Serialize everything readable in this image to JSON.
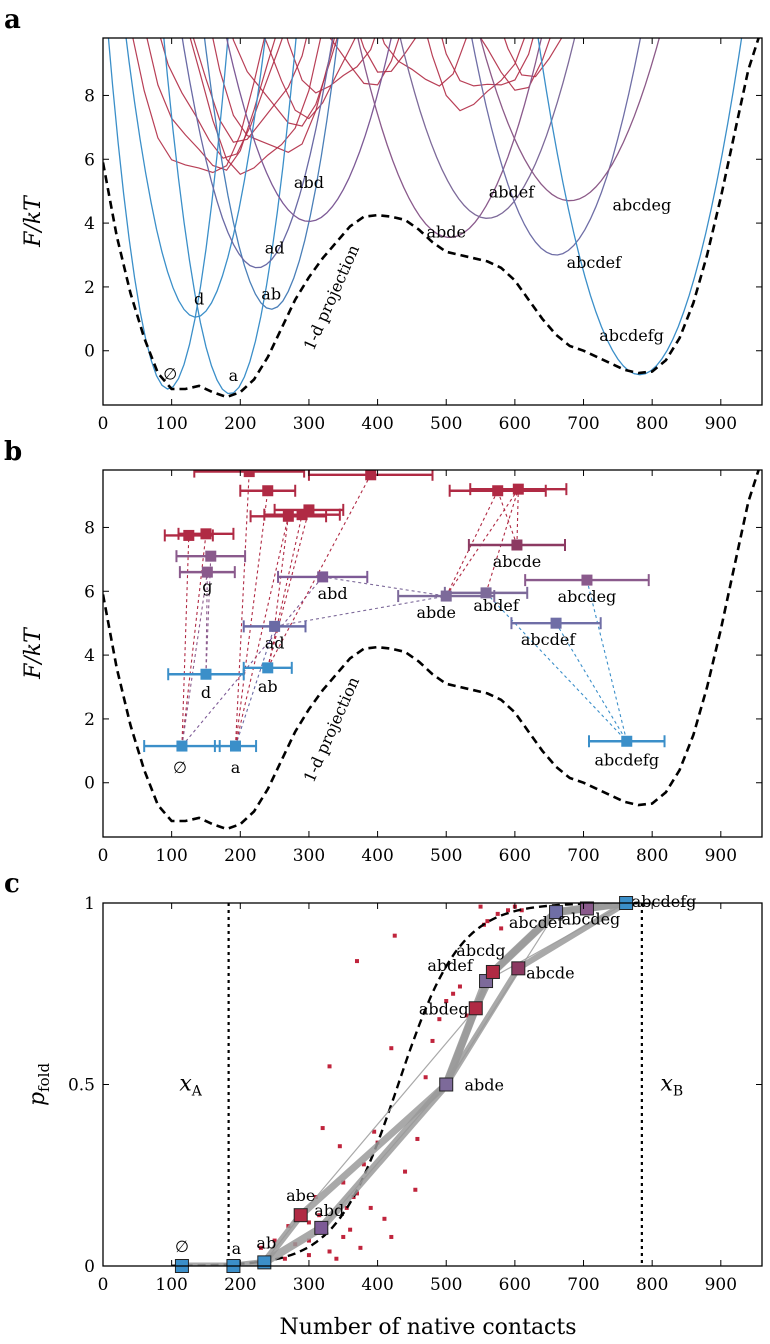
{
  "figure": {
    "xlabel": "Number of native contacts",
    "panels": [
      {
        "letter": "a",
        "ylabel": "F/kT"
      },
      {
        "letter": "b",
        "ylabel": "F/kT"
      },
      {
        "letter": "c",
        "ylabel": "p_fold"
      }
    ]
  },
  "chart_data": [
    {
      "panel": "a",
      "type": "line",
      "xlabel": "",
      "ylabel": "F/kT",
      "xlim": [
        0,
        960
      ],
      "ylim": [
        -1.7,
        9.8
      ],
      "xticks": [
        0,
        100,
        200,
        300,
        400,
        500,
        600,
        700,
        800,
        900
      ],
      "yticks": [
        0,
        2,
        4,
        6,
        8
      ],
      "projection": {
        "label": "1-d projection",
        "style": "dashed",
        "color": "#000000",
        "x": [
          0,
          20,
          40,
          60,
          80,
          100,
          120,
          140,
          160,
          180,
          200,
          220,
          240,
          260,
          280,
          300,
          320,
          340,
          360,
          380,
          400,
          420,
          440,
          460,
          480,
          500,
          520,
          540,
          560,
          580,
          600,
          620,
          640,
          660,
          680,
          700,
          720,
          740,
          760,
          780,
          800,
          820,
          840,
          860,
          880,
          900,
          920,
          940,
          955
        ],
        "y": [
          5.9,
          3.6,
          1.8,
          0.4,
          -0.7,
          -1.2,
          -1.2,
          -1.1,
          -1.3,
          -1.45,
          -1.3,
          -0.9,
          -0.2,
          0.7,
          1.6,
          2.3,
          2.9,
          3.4,
          3.9,
          4.2,
          4.25,
          4.2,
          4.1,
          3.8,
          3.4,
          3.1,
          3.0,
          2.9,
          2.8,
          2.6,
          2.2,
          1.6,
          1.0,
          0.5,
          0.15,
          0.0,
          -0.2,
          -0.4,
          -0.6,
          -0.7,
          -0.65,
          -0.3,
          0.4,
          1.5,
          3.0,
          4.8,
          6.8,
          8.8,
          9.8
        ]
      },
      "curves": [
        {
          "label": "∅",
          "color": "#3b8fc9",
          "min_x": 95,
          "min_y": -1.2,
          "k": 0.00145
        },
        {
          "label": "a",
          "color": "#3b8fc9",
          "min_x": 185,
          "min_y": -1.35,
          "k": 0.0012
        },
        {
          "label": "d",
          "color": "#3b8fc9",
          "min_x": 135,
          "min_y": 1.05,
          "k": 0.00085
        },
        {
          "label": "ab",
          "color": "#4a7fb8",
          "min_x": 245,
          "min_y": 1.3,
          "k": 0.0009
        },
        {
          "label": "ad",
          "color": "#6a6aa5",
          "min_x": 225,
          "min_y": 2.6,
          "k": 0.0006
        },
        {
          "label": "abd",
          "color": "#7d5a96",
          "min_x": 300,
          "min_y": 4.05,
          "k": 0.0004
        },
        {
          "label": "abde",
          "color": "#8a5a8c",
          "min_x": 505,
          "min_y": 3.55,
          "k": 0.00035
        },
        {
          "label": "abdef",
          "color": "#7d6a9a",
          "min_x": 560,
          "min_y": 4.15,
          "k": 0.00035
        },
        {
          "label": "abcdef",
          "color": "#6f6ea6",
          "min_x": 660,
          "min_y": 3.0,
          "k": 0.00045
        },
        {
          "label": "abcdeg",
          "color": "#8c5a88",
          "min_x": 680,
          "min_y": 4.7,
          "k": 0.0003
        },
        {
          "label": "abcdefg",
          "color": "#3b8fc9",
          "min_x": 782,
          "min_y": -0.75,
          "k": 0.00048
        }
      ],
      "background_curves": {
        "color": "#b02a44",
        "minima": [
          [
            140,
            5.4
          ],
          [
            160,
            5.8
          ],
          [
            175,
            6.3
          ],
          [
            210,
            6.7
          ],
          [
            220,
            5.6
          ],
          [
            250,
            6.1
          ],
          [
            270,
            7.2
          ],
          [
            300,
            7.6
          ],
          [
            330,
            8.1
          ],
          [
            380,
            8.5
          ],
          [
            420,
            8.9
          ],
          [
            540,
            7.6
          ],
          [
            560,
            8.0
          ],
          [
            600,
            8.4
          ],
          [
            630,
            8.8
          ],
          [
            470,
            8.3
          ]
        ]
      },
      "annotations": [
        "abd",
        "ad",
        "d",
        "ab",
        "∅",
        "a",
        "abde",
        "abdef",
        "abcdeg",
        "abcdef",
        "abcdefg",
        "1-d projection"
      ]
    },
    {
      "panel": "b",
      "type": "scatter",
      "xlabel": "",
      "ylabel": "F/kT",
      "xlim": [
        0,
        960
      ],
      "ylim": [
        -1.7,
        9.8
      ],
      "xticks": [
        0,
        100,
        200,
        300,
        400,
        500,
        600,
        700,
        800,
        900
      ],
      "yticks": [
        0,
        2,
        4,
        6,
        8
      ],
      "points": [
        {
          "label": "∅",
          "x": 115,
          "y": 1.15,
          "xerr": 55,
          "color": "#3b8fc9"
        },
        {
          "label": "a",
          "x": 193,
          "y": 1.15,
          "xerr": 30,
          "color": "#3b8fc9"
        },
        {
          "label": "d",
          "x": 150,
          "y": 3.4,
          "xerr": 55,
          "color": "#3b8fc9"
        },
        {
          "label": "ab",
          "x": 240,
          "y": 3.6,
          "xerr": 35,
          "color": "#3b8fc9"
        },
        {
          "label": "ad",
          "x": 250,
          "y": 4.9,
          "xerr": 45,
          "color": "#6a6aa5"
        },
        {
          "label": "g",
          "x": 152,
          "y": 6.6,
          "xerr": 40,
          "color": "#8a5a8c"
        },
        {
          "label": "",
          "x": 157,
          "y": 7.1,
          "xerr": 50,
          "color": "#8a5a8c"
        },
        {
          "label": "",
          "x": 125,
          "y": 7.75,
          "xerr": 35,
          "color": "#b02a44"
        },
        {
          "label": "",
          "x": 150,
          "y": 7.8,
          "xerr": 40,
          "color": "#b02a44"
        },
        {
          "label": "abd",
          "x": 320,
          "y": 6.45,
          "xerr": 65,
          "color": "#7d5a96"
        },
        {
          "label": "",
          "x": 213,
          "y": 9.75,
          "xerr": 80,
          "color": "#b02a44"
        },
        {
          "label": "",
          "x": 240,
          "y": 9.15,
          "xerr": 40,
          "color": "#b02a44"
        },
        {
          "label": "",
          "x": 270,
          "y": 8.35,
          "xerr": 55,
          "color": "#b02a44"
        },
        {
          "label": "",
          "x": 290,
          "y": 8.4,
          "xerr": 55,
          "color": "#b02a44"
        },
        {
          "label": "",
          "x": 300,
          "y": 8.55,
          "xerr": 50,
          "color": "#b02a44"
        },
        {
          "label": "",
          "x": 390,
          "y": 9.65,
          "xerr": 90,
          "color": "#b02a44"
        },
        {
          "label": "abde",
          "x": 500,
          "y": 5.85,
          "xerr": 70,
          "color": "#7d6a9a"
        },
        {
          "label": "abdef",
          "x": 558,
          "y": 5.95,
          "xerr": 60,
          "color": "#7d6a9a"
        },
        {
          "label": "abcde",
          "x": 603,
          "y": 7.45,
          "xerr": 70,
          "color": "#8c3a62"
        },
        {
          "label": "abcdeg",
          "x": 705,
          "y": 6.35,
          "xerr": 90,
          "color": "#8a5a8c"
        },
        {
          "label": "abcdef",
          "x": 660,
          "y": 5.0,
          "xerr": 65,
          "color": "#6f6ea6"
        },
        {
          "label": "",
          "x": 575,
          "y": 9.15,
          "xerr": 70,
          "color": "#b02a44"
        },
        {
          "label": "",
          "x": 605,
          "y": 9.2,
          "xerr": 70,
          "color": "#b02a44"
        },
        {
          "label": "abcdefg",
          "x": 763,
          "y": 1.3,
          "xerr": 55,
          "color": "#3b8fc9"
        }
      ],
      "projection_label": "1-d projection",
      "annotations": [
        "g",
        "abd",
        "ad",
        "d",
        "ab",
        "∅",
        "a",
        "abde",
        "abdef",
        "abcde",
        "abcdeg",
        "abcdef",
        "abcdefg",
        "1-d projection"
      ]
    },
    {
      "panel": "c",
      "type": "scatter",
      "xlabel": "Number of native contacts",
      "ylabel": "p_fold",
      "xlim": [
        0,
        960
      ],
      "ylim": [
        0,
        1
      ],
      "xticks": [
        0,
        100,
        200,
        300,
        400,
        500,
        600,
        700,
        800,
        900
      ],
      "yticks": [
        0,
        0.5,
        1
      ],
      "ytick_labels": [
        "0",
        "0.5",
        "1"
      ],
      "boundaries": [
        {
          "label": "x_A",
          "x": 183
        },
        {
          "label": "x_B",
          "x": 785
        }
      ],
      "sigmoid": {
        "style": "dashed",
        "center": 430,
        "width": 45
      },
      "states": [
        {
          "label": "∅",
          "x": 115,
          "y": 0.0,
          "color": "#3b8fc9"
        },
        {
          "label": "a",
          "x": 190,
          "y": 0.0,
          "color": "#3b8fc9"
        },
        {
          "label": "ab",
          "x": 235,
          "y": 0.01,
          "color": "#3b8fc9"
        },
        {
          "label": "abe",
          "x": 288,
          "y": 0.14,
          "color": "#b02a44"
        },
        {
          "label": "abd",
          "x": 318,
          "y": 0.105,
          "color": "#7d5a96"
        },
        {
          "label": "abde",
          "x": 500,
          "y": 0.5,
          "color": "#7d6a9a"
        },
        {
          "label": "abdeg",
          "x": 543,
          "y": 0.71,
          "color": "#b02a44"
        },
        {
          "label": "abdef",
          "x": 558,
          "y": 0.785,
          "color": "#7d6a9a"
        },
        {
          "label": "abcdg",
          "x": 568,
          "y": 0.81,
          "color": "#b02a44"
        },
        {
          "label": "abcde",
          "x": 605,
          "y": 0.82,
          "color": "#8c3a62"
        },
        {
          "label": "abcdef",
          "x": 660,
          "y": 0.975,
          "color": "#6f6ea6"
        },
        {
          "label": "abcdeg",
          "x": 705,
          "y": 0.985,
          "color": "#8a5a8c"
        },
        {
          "label": "abcdefg",
          "x": 762,
          "y": 1.0,
          "color": "#3b8fc9"
        }
      ],
      "scatter_small": [
        [
          230,
          0.05
        ],
        [
          250,
          0.07
        ],
        [
          270,
          0.11
        ],
        [
          265,
          0.02
        ],
        [
          300,
          0.12
        ],
        [
          310,
          0.19
        ],
        [
          300,
          0.07
        ],
        [
          330,
          0.04
        ],
        [
          340,
          0.02
        ],
        [
          350,
          0.08
        ],
        [
          355,
          0.16
        ],
        [
          345,
          0.33
        ],
        [
          350,
          0.23
        ],
        [
          360,
          0.1
        ],
        [
          365,
          0.19
        ],
        [
          370,
          0.2
        ],
        [
          375,
          0.05
        ],
        [
          380,
          0.28
        ],
        [
          390,
          0.16
        ],
        [
          395,
          0.37
        ],
        [
          400,
          0.34
        ],
        [
          410,
          0.13
        ],
        [
          420,
          0.08
        ],
        [
          420,
          0.6
        ],
        [
          425,
          0.91
        ],
        [
          330,
          0.55
        ],
        [
          320,
          0.38
        ],
        [
          315,
          0.14
        ],
        [
          440,
          0.26
        ],
        [
          455,
          0.21
        ],
        [
          458,
          0.35
        ],
        [
          470,
          0.52
        ],
        [
          480,
          0.62
        ],
        [
          490,
          0.68
        ],
        [
          500,
          0.73
        ],
        [
          510,
          0.75
        ],
        [
          520,
          0.77
        ],
        [
          530,
          0.69
        ],
        [
          550,
          0.99
        ],
        [
          555,
          0.94
        ],
        [
          560,
          0.95
        ],
        [
          575,
          0.97
        ],
        [
          580,
          0.93
        ],
        [
          590,
          0.98
        ],
        [
          600,
          0.99
        ],
        [
          610,
          0.98
        ],
        [
          300,
          0.03
        ],
        [
          280,
          0.06
        ],
        [
          370,
          0.84
        ]
      ]
    }
  ]
}
